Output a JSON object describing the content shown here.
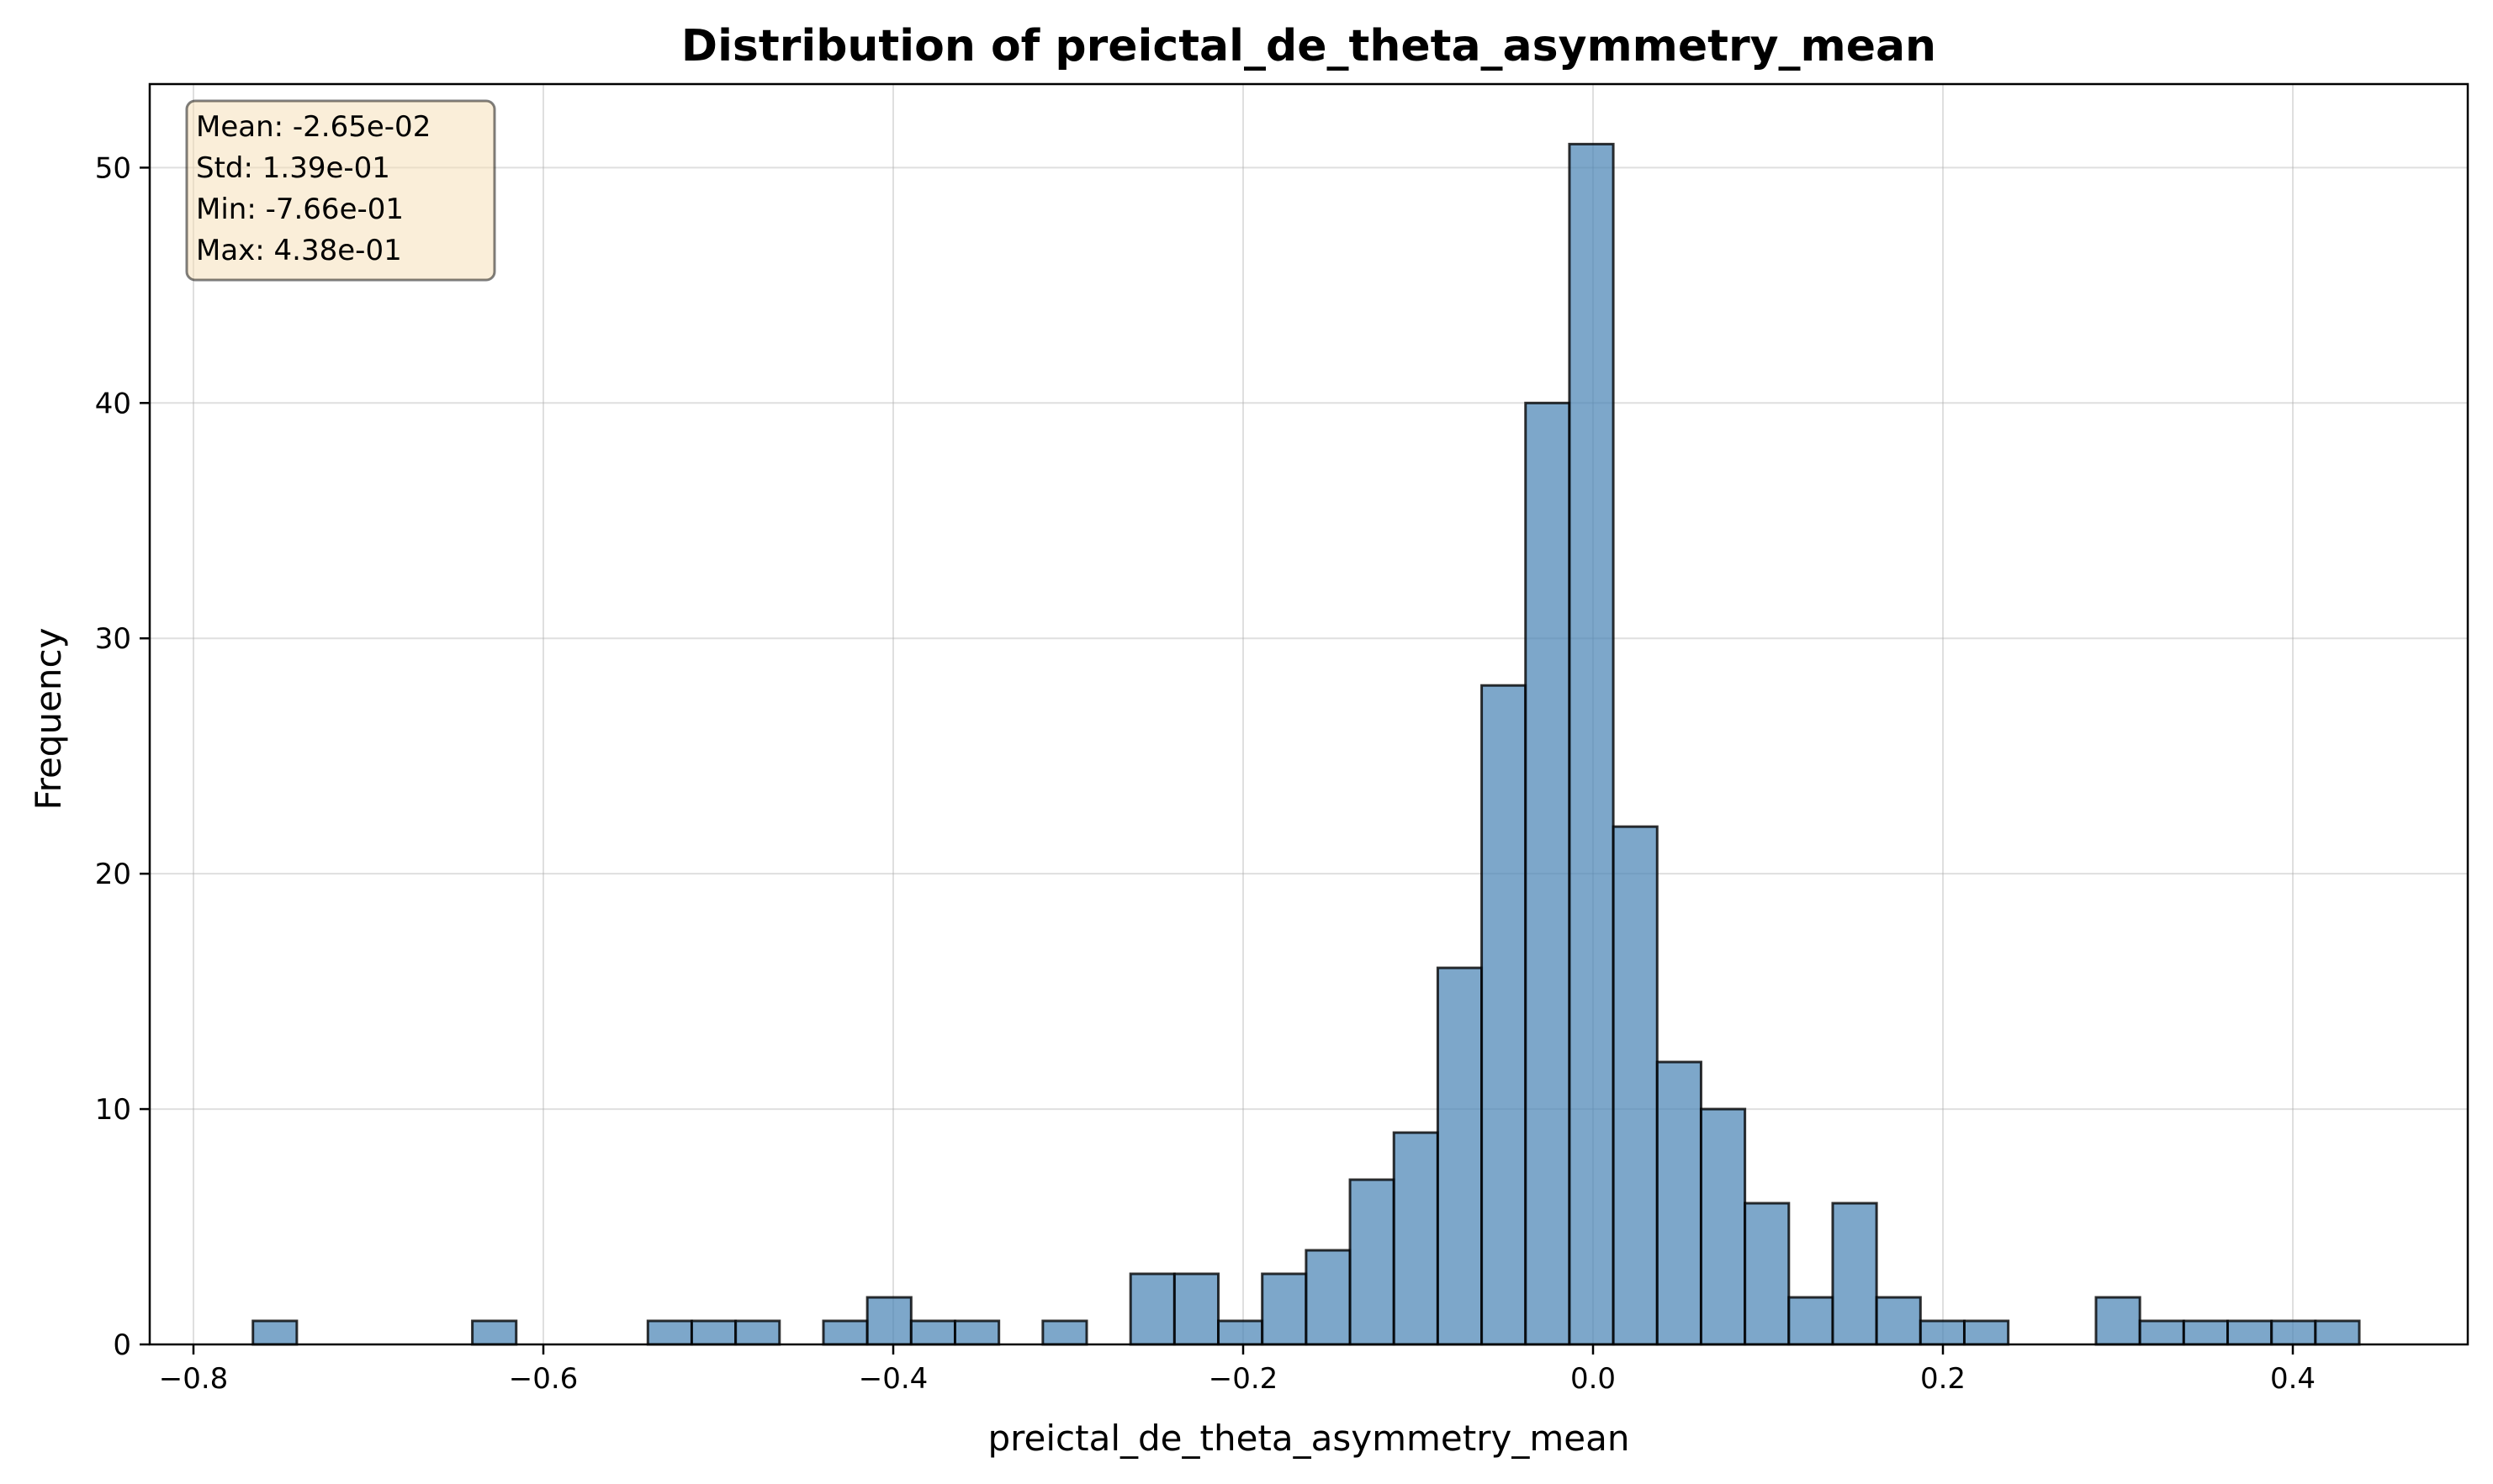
{
  "chart_data": {
    "type": "bar",
    "title": "Distribution of preictal_de_theta_asymmetry_mean",
    "xlabel": "preictal_de_theta_asymmetry_mean",
    "ylabel": "Frequency",
    "xlim": [
      -0.825,
      0.5
    ],
    "ylim": [
      0,
      53.55
    ],
    "xticks": [
      -0.8,
      -0.6,
      -0.4,
      -0.2,
      0.0,
      0.2,
      0.4
    ],
    "xtick_labels": [
      "−0.8",
      "−0.6",
      "−0.4",
      "−0.2",
      "0.0",
      "0.2",
      "0.4"
    ],
    "yticks": [
      0,
      10,
      20,
      30,
      40,
      50
    ],
    "ytick_labels": [
      "0",
      "10",
      "20",
      "30",
      "40",
      "50"
    ],
    "grid": true,
    "bin_start": -0.766,
    "bin_end": 0.438,
    "counts": [
      1,
      0,
      0,
      0,
      0,
      1,
      0,
      0,
      0,
      1,
      1,
      1,
      0,
      1,
      2,
      1,
      1,
      0,
      1,
      0,
      3,
      3,
      1,
      3,
      4,
      7,
      9,
      16,
      28,
      40,
      51,
      22,
      12,
      10,
      6,
      2,
      6,
      2,
      1,
      1,
      0,
      0,
      2,
      1,
      1,
      1,
      1,
      1
    ],
    "stats_box": {
      "lines": [
        "Mean: -2.65e-02",
        "Std: 1.39e-01",
        "Min: -7.66e-01",
        "Max: 4.38e-01"
      ],
      "placement": "top-left",
      "facecolor": "#f5deb3",
      "edgecolor": "#000000"
    },
    "bar_color": "#4682b4",
    "edge_color": "#000000"
  }
}
